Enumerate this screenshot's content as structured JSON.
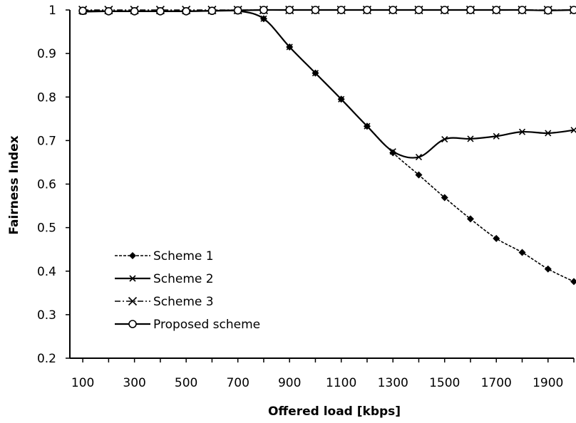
{
  "chart_data": {
    "type": "line",
    "title": "",
    "xlabel": "Offered load [kbps]",
    "ylabel": "Fairness Index",
    "xlim": [
      50,
      2000
    ],
    "ylim": [
      0.2,
      1.0
    ],
    "x_ticks": [
      100,
      300,
      500,
      700,
      900,
      1100,
      1300,
      1500,
      1700,
      1900
    ],
    "y_ticks": [
      0.2,
      0.3,
      0.4,
      0.5,
      0.6,
      0.7,
      0.8,
      0.9,
      1
    ],
    "y_tick_labels": [
      "0.2",
      "0.3",
      "0.4",
      "0.5",
      "0.6",
      "0.7",
      "0.8",
      "0.9",
      "1"
    ],
    "grid": false,
    "legend_position": "lower-left",
    "x": [
      100,
      200,
      300,
      400,
      500,
      600,
      700,
      800,
      900,
      1000,
      1100,
      1200,
      1300,
      1400,
      1500,
      1600,
      1700,
      1800,
      1900,
      2000
    ],
    "series": [
      {
        "name": "Scheme 1",
        "marker": "diamond-filled",
        "line": "dashed",
        "values": [
          0.997,
          0.997,
          0.997,
          0.997,
          0.997,
          0.998,
          0.998,
          0.98,
          0.915,
          0.855,
          0.795,
          0.733,
          0.672,
          0.621,
          0.569,
          0.52,
          0.475,
          0.443,
          0.405,
          0.376
        ]
      },
      {
        "name": "Scheme 2",
        "marker": "x",
        "line": "solid",
        "values": [
          0.996,
          0.997,
          0.997,
          0.997,
          0.997,
          0.998,
          0.998,
          0.98,
          0.915,
          0.855,
          0.795,
          0.733,
          0.675,
          0.662,
          0.703,
          0.704,
          0.71,
          0.72,
          0.717,
          0.724
        ]
      },
      {
        "name": "Scheme 3",
        "marker": "x-large",
        "line": "dash-dot",
        "values": [
          1,
          1,
          1,
          1,
          1,
          1,
          1,
          1,
          1,
          1,
          1,
          1,
          1,
          1,
          1,
          1,
          1,
          1,
          1,
          1
        ]
      },
      {
        "name": "Proposed scheme",
        "marker": "circle-open",
        "line": "solid",
        "values": [
          0.998,
          0.997,
          0.997,
          0.997,
          0.997,
          0.998,
          0.999,
          1,
          1,
          1,
          1,
          1,
          1,
          1,
          1,
          1,
          1,
          1,
          0.999,
          1
        ]
      }
    ]
  }
}
